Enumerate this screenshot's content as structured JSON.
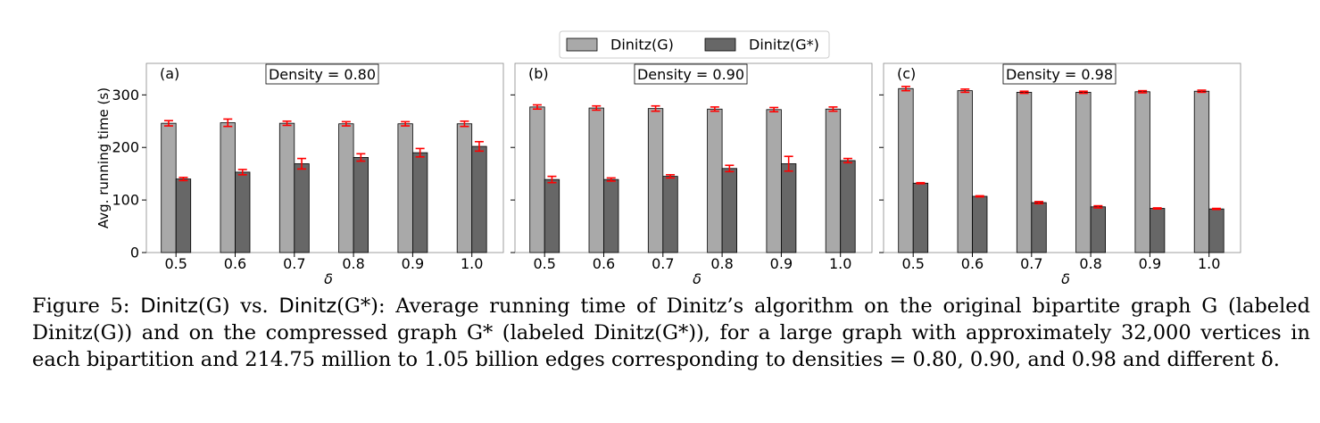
{
  "legend": {
    "items": [
      {
        "label": "Dinitz(G)",
        "color": "#a9a9a9"
      },
      {
        "label": "Dinitz(G*)",
        "color": "#676767"
      }
    ],
    "placement": "top-center"
  },
  "chart_data": [
    {
      "type": "bar",
      "panel_label": "(a)",
      "title": "Density = 0.80",
      "xlabel": "δ",
      "ylabel": "Avg. running time (s)",
      "categories": [
        "0.5",
        "0.6",
        "0.7",
        "0.8",
        "0.9",
        "1.0"
      ],
      "ylim": [
        0,
        360
      ],
      "yticks": [
        "0",
        "100",
        "200",
        "300"
      ],
      "series": [
        {
          "name": "Dinitz(G)",
          "values": [
            246,
            247,
            246,
            245,
            245,
            245
          ],
          "errors": [
            5,
            7,
            4,
            4,
            4,
            5
          ]
        },
        {
          "name": "Dinitz(G*)",
          "values": [
            140,
            153,
            169,
            181,
            190,
            202
          ],
          "errors": [
            3,
            5,
            10,
            7,
            8,
            9
          ]
        }
      ]
    },
    {
      "type": "bar",
      "panel_label": "(b)",
      "title": "Density = 0.90",
      "xlabel": "δ",
      "ylabel": "",
      "categories": [
        "0.5",
        "0.6",
        "0.7",
        "0.8",
        "0.9",
        "1.0"
      ],
      "ylim": [
        0,
        360
      ],
      "yticks": [],
      "series": [
        {
          "name": "Dinitz(G)",
          "values": [
            277,
            275,
            274,
            273,
            272,
            273
          ],
          "errors": [
            4,
            4,
            5,
            4,
            4,
            4
          ]
        },
        {
          "name": "Dinitz(G*)",
          "values": [
            139,
            139,
            145,
            160,
            169,
            175
          ],
          "errors": [
            6,
            3,
            3,
            6,
            14,
            4
          ]
        }
      ]
    },
    {
      "type": "bar",
      "panel_label": "(c)",
      "title": "Density = 0.98",
      "xlabel": "δ",
      "ylabel": "",
      "categories": [
        "0.5",
        "0.6",
        "0.7",
        "0.8",
        "0.9",
        "1.0"
      ],
      "ylim": [
        0,
        360
      ],
      "yticks": [],
      "series": [
        {
          "name": "Dinitz(G)",
          "values": [
            312,
            308,
            305,
            305,
            306,
            307
          ],
          "errors": [
            4,
            3,
            2,
            2,
            2,
            2
          ]
        },
        {
          "name": "Dinitz(G*)",
          "values": [
            132,
            107,
            95,
            87,
            84,
            83
          ],
          "errors": [
            1,
            1,
            2,
            2,
            1,
            1
          ]
        }
      ]
    }
  ],
  "caption": {
    "prefix": "Figure 5: ",
    "alg1": "Dinitz",
    "g1": "(G)",
    "vs": " vs. ",
    "alg2": "Dinitz",
    "g2": "(G*)",
    "body": ": Average running time of Dinitz’s algorithm on the original bipartite graph G (labeled Dinitz(G)) and on the compressed graph G* (labeled Dinitz(G*)), for a large graph with approximately 32,000 vertices in each bipartition and 214.75 million to 1.05 billion edges corresponding to densities = 0.80, 0.90, and 0.98 and different δ."
  }
}
